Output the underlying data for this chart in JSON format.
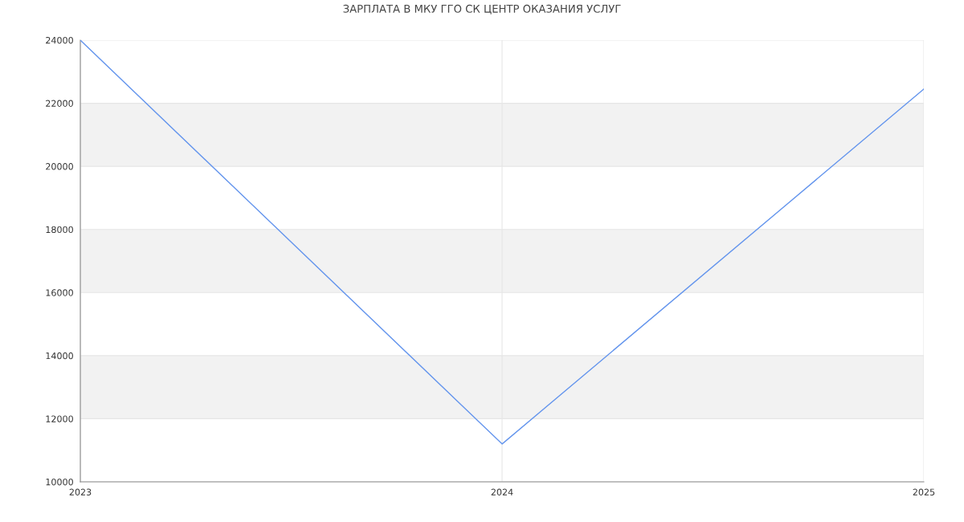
{
  "chart_data": {
    "type": "line",
    "title": "ЗАРПЛАТА В МКУ ГГО СК ЦЕНТР ОКАЗАНИЯ УСЛУГ",
    "x": [
      2023,
      2024,
      2025
    ],
    "series": [
      {
        "color": "#6495ed",
        "values": [
          24000,
          11200,
          22450
        ]
      }
    ],
    "xlim": [
      2023,
      2025
    ],
    "xticks": [
      2023,
      2024,
      2025
    ],
    "ylim": [
      10000,
      24000
    ],
    "yticks": [
      10000,
      12000,
      14000,
      16000,
      18000,
      20000,
      22000,
      24000
    ],
    "bands": [
      {
        "axis": "y",
        "from": 12000,
        "to": 14000,
        "color": "#f2f2f2"
      },
      {
        "axis": "y",
        "from": 16000,
        "to": 18000,
        "color": "#f2f2f2"
      },
      {
        "axis": "y",
        "from": 20000,
        "to": 22000,
        "color": "#f2f2f2"
      }
    ],
    "grid": true,
    "legend": false
  }
}
